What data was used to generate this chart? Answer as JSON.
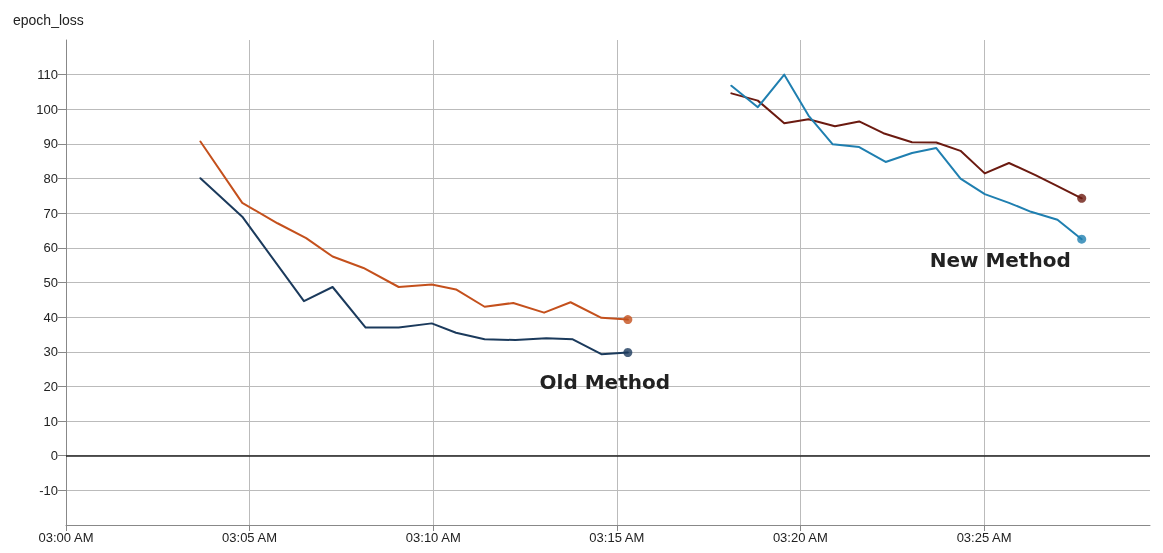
{
  "chart_data": {
    "type": "line",
    "title": "epoch_loss",
    "xlim": [
      3.0,
      3.492
    ],
    "xticks": [
      {
        "value": 3.0,
        "label": "03:00 AM"
      },
      {
        "value": 3.0833,
        "label": "03:05 AM"
      },
      {
        "value": 3.1667,
        "label": "03:10 AM"
      },
      {
        "value": 3.25,
        "label": "03:15 AM"
      },
      {
        "value": 3.3333,
        "label": "03:20 AM"
      },
      {
        "value": 3.4167,
        "label": "03:25 AM"
      }
    ],
    "ylim": [
      -20,
      120
    ],
    "yticks": [
      -10,
      0,
      10,
      20,
      30,
      40,
      50,
      60,
      70,
      80,
      90,
      100,
      110
    ],
    "grid": true,
    "line_style": "solid",
    "ref_lines": [
      {
        "axis": "y",
        "value": 0,
        "color": "#222222"
      }
    ],
    "series": [
      {
        "color": "#c4501c",
        "x": [
          3.061,
          3.08,
          3.096,
          3.109,
          3.121,
          3.135,
          3.151,
          3.166,
          3.177,
          3.19,
          3.203,
          3.217,
          3.229,
          3.243,
          3.255
        ],
        "values": [
          90.7,
          73.0,
          67.1,
          62.8,
          57.5,
          54.2,
          48.7,
          49.4,
          48.0,
          43.0,
          44.1,
          41.3,
          44.3,
          39.8,
          39.3
        ]
      },
      {
        "color": "#1b3a5c",
        "x": [
          3.061,
          3.08,
          3.108,
          3.121,
          3.136,
          3.151,
          3.166,
          3.177,
          3.19,
          3.204,
          3.218,
          3.23,
          3.243,
          3.255
        ],
        "values": [
          80.1,
          69.0,
          44.6,
          48.7,
          37.0,
          37.0,
          38.2,
          35.5,
          33.6,
          33.4,
          33.9,
          33.6,
          29.3,
          29.8
        ]
      },
      {
        "color": "#6b1a10",
        "x": [
          3.302,
          3.314,
          3.326,
          3.337,
          3.349,
          3.36,
          3.371,
          3.384,
          3.395,
          3.406,
          3.417,
          3.428,
          3.44,
          3.45,
          3.461
        ],
        "values": [
          104.6,
          102.5,
          96.0,
          97.1,
          95.1,
          96.5,
          93.1,
          90.5,
          90.4,
          88.0,
          81.5,
          84.5,
          81.0,
          77.8,
          74.3
        ]
      },
      {
        "color": "#1f7fb0",
        "x": [
          3.302,
          3.314,
          3.326,
          3.337,
          3.348,
          3.36,
          3.372,
          3.384,
          3.395,
          3.406,
          3.417,
          3.428,
          3.438,
          3.45,
          3.461
        ],
        "values": [
          106.8,
          100.6,
          110.0,
          98.2,
          89.9,
          89.1,
          84.8,
          87.4,
          88.8,
          80.0,
          75.5,
          73.0,
          70.4,
          68.1,
          62.5
        ]
      },
      {
        "type": "scatter",
        "marker": "circle",
        "color": "#c4501c",
        "x": [
          3.255
        ],
        "values": [
          39.3
        ]
      },
      {
        "type": "scatter",
        "marker": "circle",
        "color": "#1b3a5c",
        "x": [
          3.255
        ],
        "values": [
          29.8
        ]
      },
      {
        "type": "scatter",
        "marker": "circle",
        "color": "#6b1a10",
        "x": [
          3.461
        ],
        "values": [
          74.3
        ]
      },
      {
        "type": "scatter",
        "marker": "circle",
        "color": "#1f7fb0",
        "x": [
          3.461
        ],
        "values": [
          62.5
        ]
      }
    ],
    "annotations": [
      "Old Method",
      "New Method"
    ]
  }
}
